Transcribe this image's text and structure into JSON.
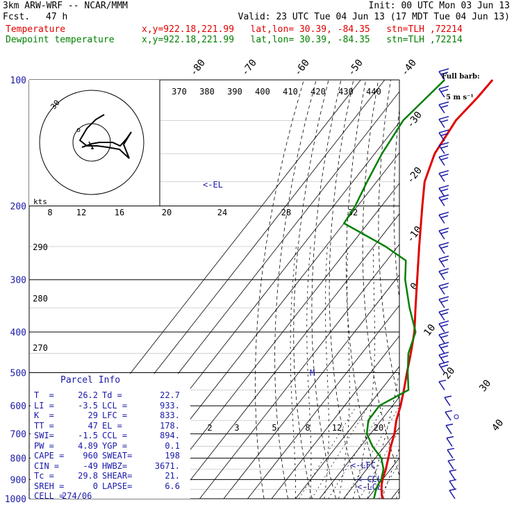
{
  "header": {
    "line1_left": "3km ARW-WRF -- NCAR/MMM",
    "line1_right": "Init: 00 UTC Mon 03 Jun 13",
    "fcst_label": "Fcst.",
    "fcst_value": "47 h",
    "valid": "Valid: 23 UTC Tue 04 Jun 13 (17 MDT Tue 04 Jun 13)",
    "temp_label": "Temperature",
    "dew_label": "Dewpoint temperature",
    "loc_info": "x,y=922.18,221.99   lat,lon= 30.39, -84.35   stn=TLH ,72214"
  },
  "barb_legend": {
    "line1": "Full barb:",
    "line2": "5 m s⁻¹"
  },
  "el_label": "<-EL",
  "lfc_label": "<-LFC",
  "ccl_label": "<-CCL",
  "lcl_label": "<-LCL",
  "m_marker": "M",
  "hodograph": {
    "units": "kts",
    "ticks": [
      "8",
      "12",
      "16",
      "20",
      "24",
      "28",
      "32"
    ],
    "ring_label": "30"
  },
  "parcel_info": {
    "title": "Parcel Info",
    "rows": [
      [
        "T  =",
        "26.2",
        "Td =",
        "22.7"
      ],
      [
        "LI =",
        "-3.5",
        "LCL =",
        "933."
      ],
      [
        "K  =",
        "29",
        "LFC =",
        "833."
      ],
      [
        "TT =",
        "47",
        "EL =",
        "178."
      ],
      [
        "SWI=",
        "-1.5",
        "CCL =",
        "894."
      ],
      [
        "PW =",
        "4.89",
        "YGP =",
        "0.1"
      ],
      [
        "CAPE =",
        "960",
        "SWEAT=",
        "198"
      ],
      [
        "CIN =",
        "-49",
        "HWBZ=",
        "3671."
      ],
      [
        "Tc =",
        "29.8",
        "SHEAR=",
        "21."
      ],
      [
        "SREH =",
        "0",
        "LAPSE=",
        "6.6"
      ],
      [
        "CELL =",
        "274/06",
        "",
        ""
      ]
    ]
  },
  "colors": {
    "temperature": "#e00000",
    "dewpoint": "#008000",
    "axes": "#000000",
    "labels": "#1a1aa8",
    "isotherm": "#000000"
  },
  "chart_data": {
    "type": "line",
    "subtype": "skew-T log-P sounding",
    "y_axis": {
      "label": "",
      "scale": "log",
      "ticks": [
        100,
        200,
        300,
        400,
        500,
        600,
        700,
        800,
        900,
        1000
      ]
    },
    "isotherm_labels": [
      "-80",
      "-70",
      "-60",
      "-50",
      "-40",
      "-30",
      "-20",
      "-10",
      "0",
      "10",
      "20",
      "30",
      "40"
    ],
    "theta_labels": [
      "370",
      "380",
      "390",
      "400",
      "410",
      "420",
      "430",
      "440"
    ],
    "theta_side_labels": [
      "290",
      "280",
      "270"
    ],
    "mixing_ratio_labels": [
      "2",
      "3",
      "5",
      "8",
      "12",
      "20"
    ],
    "series": [
      {
        "name": "Temperature",
        "points": [
          {
            "p": 1000,
            "t": 26.2
          },
          {
            "p": 975,
            "t": 24.5
          },
          {
            "p": 950,
            "t": 22.8
          },
          {
            "p": 925,
            "t": 21.3
          },
          {
            "p": 900,
            "t": 20.0
          },
          {
            "p": 850,
            "t": 18.0
          },
          {
            "p": 800,
            "t": 15.4
          },
          {
            "p": 750,
            "t": 12.6
          },
          {
            "p": 700,
            "t": 10.0
          },
          {
            "p": 650,
            "t": 6.4
          },
          {
            "p": 600,
            "t": 3.4
          },
          {
            "p": 550,
            "t": -0.4
          },
          {
            "p": 500,
            "t": -4.8
          },
          {
            "p": 450,
            "t": -9.5
          },
          {
            "p": 400,
            "t": -15.0
          },
          {
            "p": 350,
            "t": -22.5
          },
          {
            "p": 300,
            "t": -31.0
          },
          {
            "p": 250,
            "t": -41.0
          },
          {
            "p": 200,
            "t": -53.0
          },
          {
            "p": 175,
            "t": -60.0
          },
          {
            "p": 150,
            "t": -65.0
          },
          {
            "p": 125,
            "t": -67.0
          },
          {
            "p": 110,
            "t": -65.5
          },
          {
            "p": 100,
            "t": -65.0
          }
        ]
      },
      {
        "name": "Dewpoint temperature",
        "points": [
          {
            "p": 1000,
            "t": 22.7
          },
          {
            "p": 960,
            "t": 21.0
          },
          {
            "p": 930,
            "t": 19.9
          },
          {
            "p": 900,
            "t": 19.5
          },
          {
            "p": 850,
            "t": 17.0
          },
          {
            "p": 800,
            "t": 12.5
          },
          {
            "p": 750,
            "t": 5.0
          },
          {
            "p": 700,
            "t": -1.5
          },
          {
            "p": 650,
            "t": -5.3
          },
          {
            "p": 600,
            "t": -5.5
          },
          {
            "p": 550,
            "t": 1.5
          },
          {
            "p": 500,
            "t": -4.5
          },
          {
            "p": 450,
            "t": -10.5
          },
          {
            "p": 400,
            "t": -14.5
          },
          {
            "p": 350,
            "t": -25.0
          },
          {
            "p": 300,
            "t": -36.0
          },
          {
            "p": 270,
            "t": -42.0
          },
          {
            "p": 250,
            "t": -55.0
          },
          {
            "p": 220,
            "t": -80.0
          },
          {
            "p": 200,
            "t": -81.0
          },
          {
            "p": 175,
            "t": -84.0
          },
          {
            "p": 150,
            "t": -87.0
          },
          {
            "p": 125,
            "t": -89.0
          },
          {
            "p": 100,
            "t": -85.0
          }
        ]
      }
    ],
    "wind_barbs_hPa": [
      100,
      110,
      120,
      130,
      140,
      150,
      160,
      175,
      190,
      200,
      220,
      240,
      260,
      280,
      300,
      325,
      350,
      375,
      400,
      425,
      450,
      475,
      500,
      550,
      600,
      650,
      700,
      750,
      800,
      850,
      900,
      950,
      1000
    ]
  }
}
